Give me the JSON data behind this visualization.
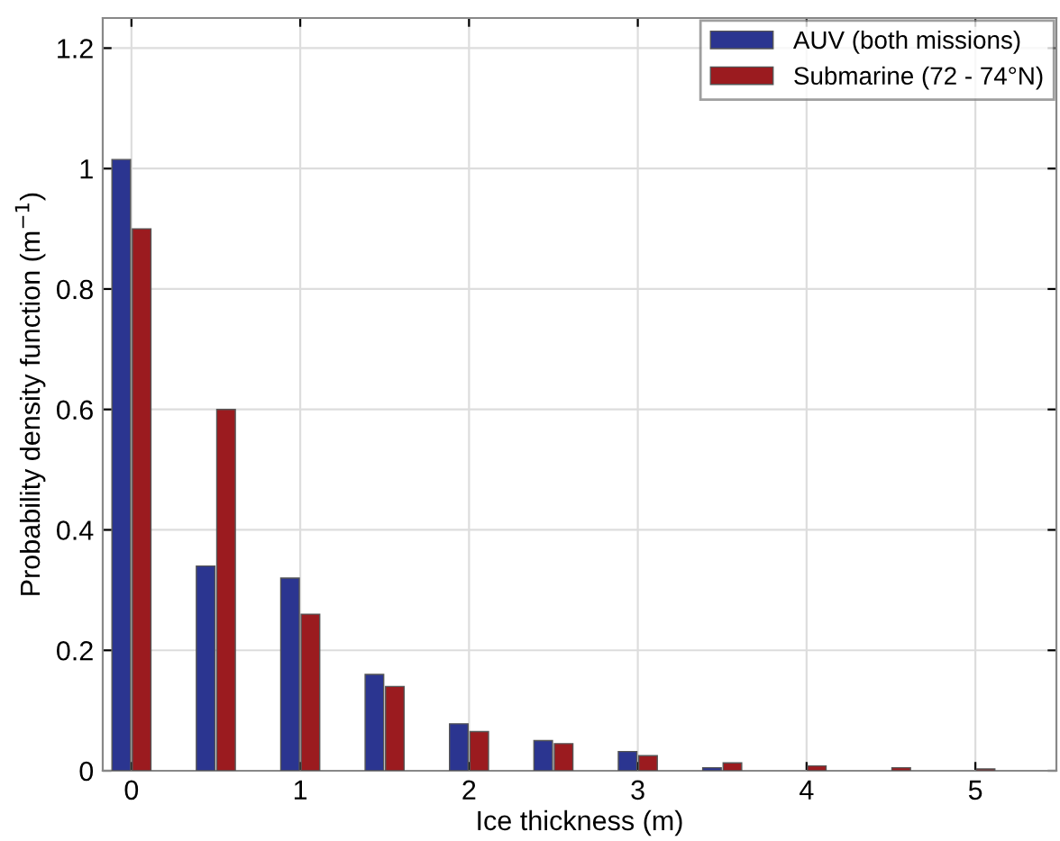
{
  "chart_data": {
    "type": "bar",
    "xlabel": "Ice thickness (m)",
    "ylabel": "Probability density function (m$^{−1}$)",
    "x": [
      0,
      0.5,
      1,
      1.5,
      2,
      2.5,
      3,
      3.5,
      4,
      4.5,
      5
    ],
    "series": [
      {
        "name": "AUV (both missions)",
        "color": "#2b3590",
        "values": [
          1.015,
          0.34,
          0.32,
          0.16,
          0.078,
          0.05,
          0.032,
          0.005,
          null,
          null,
          null
        ]
      },
      {
        "name": "Submarine (72 - 74°N)",
        "color": "#9b1b1f",
        "values": [
          0.9,
          0.6,
          0.26,
          0.14,
          0.065,
          0.045,
          0.025,
          0.013,
          0.008,
          0.005,
          0.003
        ]
      }
    ],
    "xlim": [
      -0.17,
      5.48
    ],
    "xticks": [
      0,
      1,
      2,
      3,
      4,
      5
    ],
    "ylim": [
      0,
      1.25
    ],
    "yticks": [
      0,
      0.2,
      0.4,
      0.6,
      0.8,
      1,
      1.2
    ],
    "grid": true,
    "legend": "top right"
  }
}
